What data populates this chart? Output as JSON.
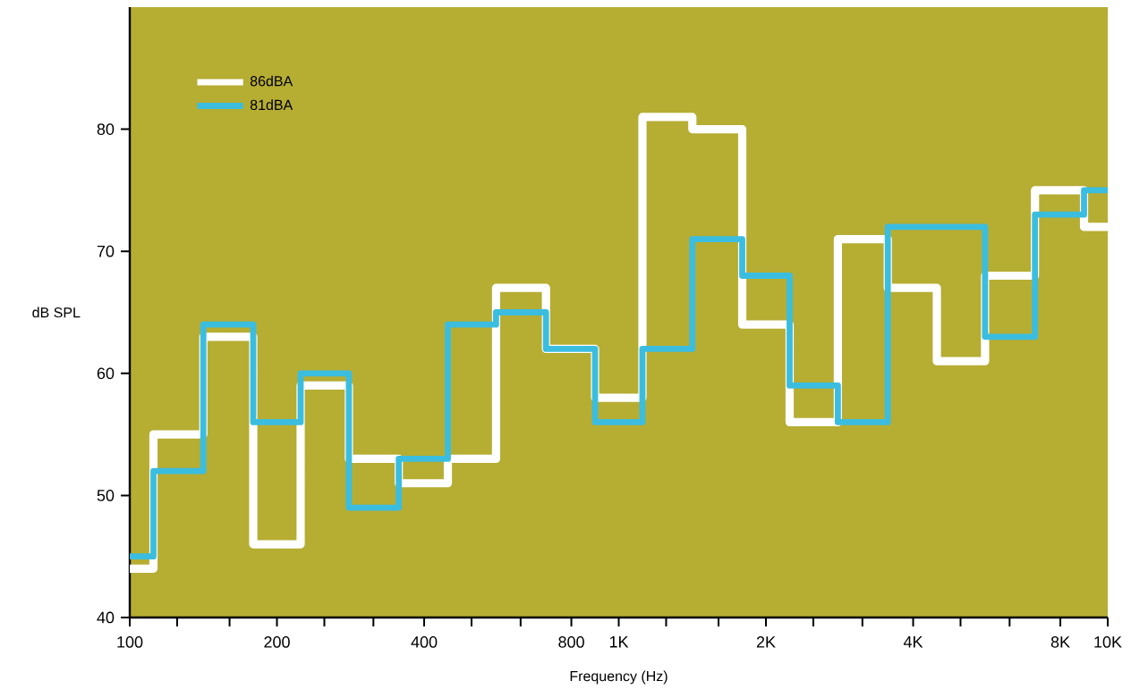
{
  "chart_data": {
    "type": "step",
    "xlabel": "Frequency (Hz)",
    "ylabel": "dB SPL",
    "log": "x",
    "legend": "top left",
    "x": [
      100,
      125,
      160,
      200,
      250,
      315,
      400,
      500,
      630,
      800,
      1000,
      1250,
      1600,
      2000,
      2500,
      3150,
      4000,
      5000,
      6300,
      8000,
      10000
    ],
    "series": [
      {
        "name": "86dBA",
        "color": "#ffffff",
        "values": [
          44,
          55,
          63,
          46,
          59,
          53,
          51,
          53,
          67,
          62,
          58,
          81,
          80,
          64,
          56,
          71,
          67,
          61,
          68,
          75,
          72
        ]
      },
      {
        "name": "81dBA",
        "color": "#3bbde0",
        "values": [
          45,
          52,
          64,
          56,
          60,
          49,
          53,
          64,
          65,
          62,
          56,
          62,
          71,
          68,
          59,
          56,
          72,
          72,
          63,
          73,
          75
        ]
      }
    ],
    "xlim": [
      100,
      10000
    ],
    "ylim": [
      40,
      90
    ],
    "xticks": [
      {
        "value": 100,
        "label": "100"
      },
      {
        "value": 125,
        "label": null
      },
      {
        "value": 160,
        "label": null
      },
      {
        "value": 200,
        "label": "200"
      },
      {
        "value": 250,
        "label": null
      },
      {
        "value": 315,
        "label": null
      },
      {
        "value": 400,
        "label": "400"
      },
      {
        "value": 500,
        "label": null
      },
      {
        "value": 630,
        "label": null
      },
      {
        "value": 800,
        "label": "800"
      },
      {
        "value": 1000,
        "label": "1K"
      },
      {
        "value": 1250,
        "label": null
      },
      {
        "value": 1600,
        "label": null
      },
      {
        "value": 2000,
        "label": "2K"
      },
      {
        "value": 2500,
        "label": null
      },
      {
        "value": 3150,
        "label": null
      },
      {
        "value": 4000,
        "label": "4K"
      },
      {
        "value": 5000,
        "label": null
      },
      {
        "value": 6300,
        "label": null
      },
      {
        "value": 8000,
        "label": "8K"
      },
      {
        "value": 10000,
        "label": "10K"
      }
    ],
    "yticks": [
      40,
      50,
      60,
      70,
      80
    ]
  }
}
